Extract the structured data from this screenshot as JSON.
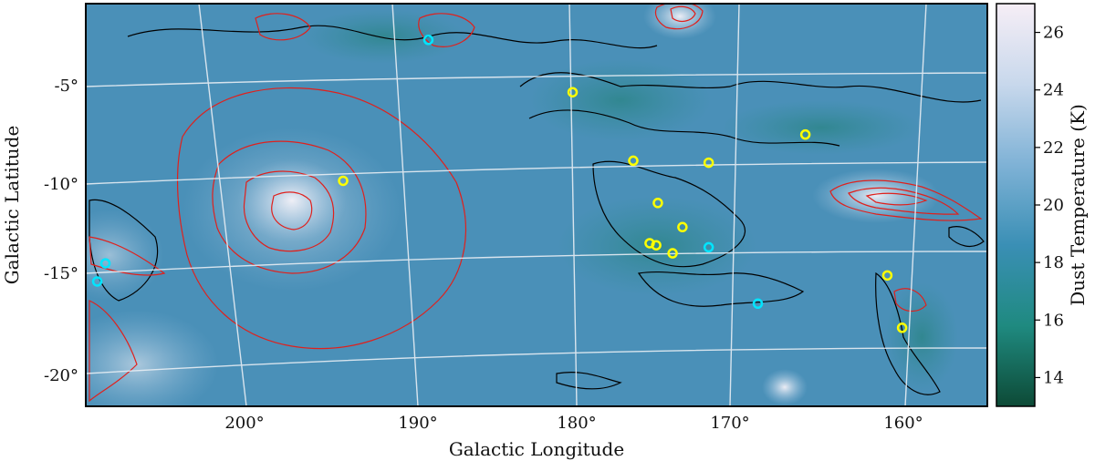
{
  "chart_data": {
    "type": "heatmap",
    "xlabel": "Galactic Longitude",
    "ylabel": "Galactic Latitude",
    "x_ticks": [
      "200°",
      "190°",
      "180°",
      "170°",
      "160°"
    ],
    "y_ticks": [
      "-5°",
      "-10°",
      "-15°",
      "-20°"
    ],
    "xlim": [
      209,
      154
    ],
    "ylim": [
      -21.5,
      -1.5
    ],
    "grid": true,
    "colorbar": {
      "label": "Dust Temperature (K)",
      "ticks": [
        "14",
        "16",
        "18",
        "20",
        "22",
        "24",
        "26"
      ],
      "range": [
        13,
        27
      ],
      "colors": [
        "#0d4a36",
        "#1f8a80",
        "#3a8fb5",
        "#7fb2d6",
        "#c8d8ec",
        "#f6eef6"
      ]
    },
    "contours": {
      "red": "red emission contours",
      "black": "black dust contours"
    },
    "markers": {
      "yellow": [
        {
          "l": 179.3,
          "b": -5.9
        },
        {
          "l": 165.1,
          "b": -8.0
        },
        {
          "l": 175.6,
          "b": -9.3
        },
        {
          "l": 171.0,
          "b": -9.4
        },
        {
          "l": 193.3,
          "b": -10.3
        },
        {
          "l": 174.1,
          "b": -11.4
        },
        {
          "l": 172.6,
          "b": -12.6
        },
        {
          "l": 174.6,
          "b": -13.4
        },
        {
          "l": 174.2,
          "b": -13.5
        },
        {
          "l": 173.2,
          "b": -13.9
        },
        {
          "l": 160.1,
          "b": -15.0
        },
        {
          "l": 159.2,
          "b": -17.6
        }
      ],
      "cyan": [
        {
          "l": 188.1,
          "b": -3.3
        },
        {
          "l": 207.8,
          "b": -14.4
        },
        {
          "l": 208.3,
          "b": -15.3
        },
        {
          "l": 171.0,
          "b": -13.6
        },
        {
          "l": 168.0,
          "b": -16.4
        }
      ],
      "colors": {
        "yellow": "#ffff00",
        "cyan": "#00e5ff"
      }
    }
  }
}
